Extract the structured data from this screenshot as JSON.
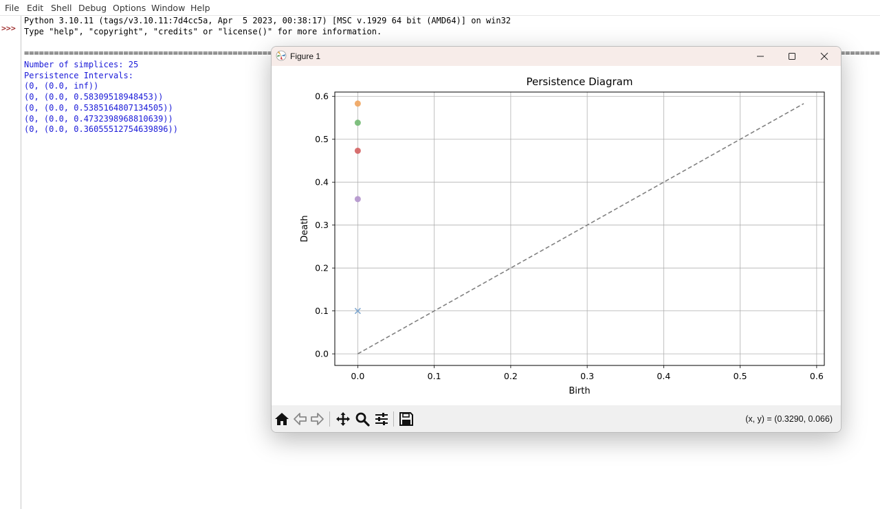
{
  "menu": [
    "File",
    "Edit",
    "Shell",
    "Debug",
    "Options",
    "Window",
    "Help"
  ],
  "shell": {
    "banner": [
      "Python 3.10.11 (tags/v3.10.11:7d4cc5a, Apr  5 2023, 00:38:17) [MSC v.1929 64 bit (AMD64)] on win32",
      "Type \"help\", \"copyright\", \"credits\" or \"license()\" for more information."
    ],
    "prompt": ">>>",
    "restart_left": "======================================================",
    "restart_right": "=========",
    "output": [
      "Number of simplices: 25",
      "",
      "Persistence Intervals:",
      "(0, (0.0, inf))",
      "(0, (0.0, 0.58309518948453))",
      "(0, (0.0, 0.5385164807134505))",
      "(0, (0.0, 0.4732398968810639))",
      "(0, (0.0, 0.36055512754639896))"
    ]
  },
  "figure": {
    "title": "Figure 1",
    "icons": [
      "matplotlib-logo-icon",
      "minimize-icon",
      "maximize-icon",
      "close-icon"
    ],
    "toolbar": {
      "icons": [
        "home-icon",
        "back-icon",
        "forward-icon",
        "pan-icon",
        "zoom-icon",
        "configure-subplots-icon",
        "save-icon"
      ],
      "coords": "(x, y) = (0.3290, 0.066)"
    }
  },
  "chart_data": {
    "type": "scatter",
    "title": "Persistence Diagram",
    "xlabel": "Birth",
    "ylabel": "Death",
    "xlim": [
      -0.03,
      0.61
    ],
    "ylim": [
      -0.027,
      0.61
    ],
    "xticks": [
      "0.0",
      "0.1",
      "0.2",
      "0.3",
      "0.4",
      "0.5",
      "0.6"
    ],
    "yticks": [
      "0.0",
      "0.1",
      "0.2",
      "0.3",
      "0.4",
      "0.5",
      "0.6"
    ],
    "grid": true,
    "points": [
      {
        "x": 0.0,
        "y": 0.1,
        "marker": "x",
        "color": "#7ea6cf"
      },
      {
        "x": 0.0,
        "y": 0.58309518948453,
        "marker": "o",
        "color": "#f0a45e"
      },
      {
        "x": 0.0,
        "y": 0.5385164807134505,
        "marker": "o",
        "color": "#72b972"
      },
      {
        "x": 0.0,
        "y": 0.4732398968810639,
        "marker": "o",
        "color": "#d46060"
      },
      {
        "x": 0.0,
        "y": 0.36055512754639896,
        "marker": "o",
        "color": "#b293cc"
      }
    ],
    "diagonal": {
      "from": [
        0.0,
        0.0
      ],
      "to": [
        0.58309518948453,
        0.58309518948453
      ],
      "style": "dashed",
      "color": "#808080"
    }
  }
}
